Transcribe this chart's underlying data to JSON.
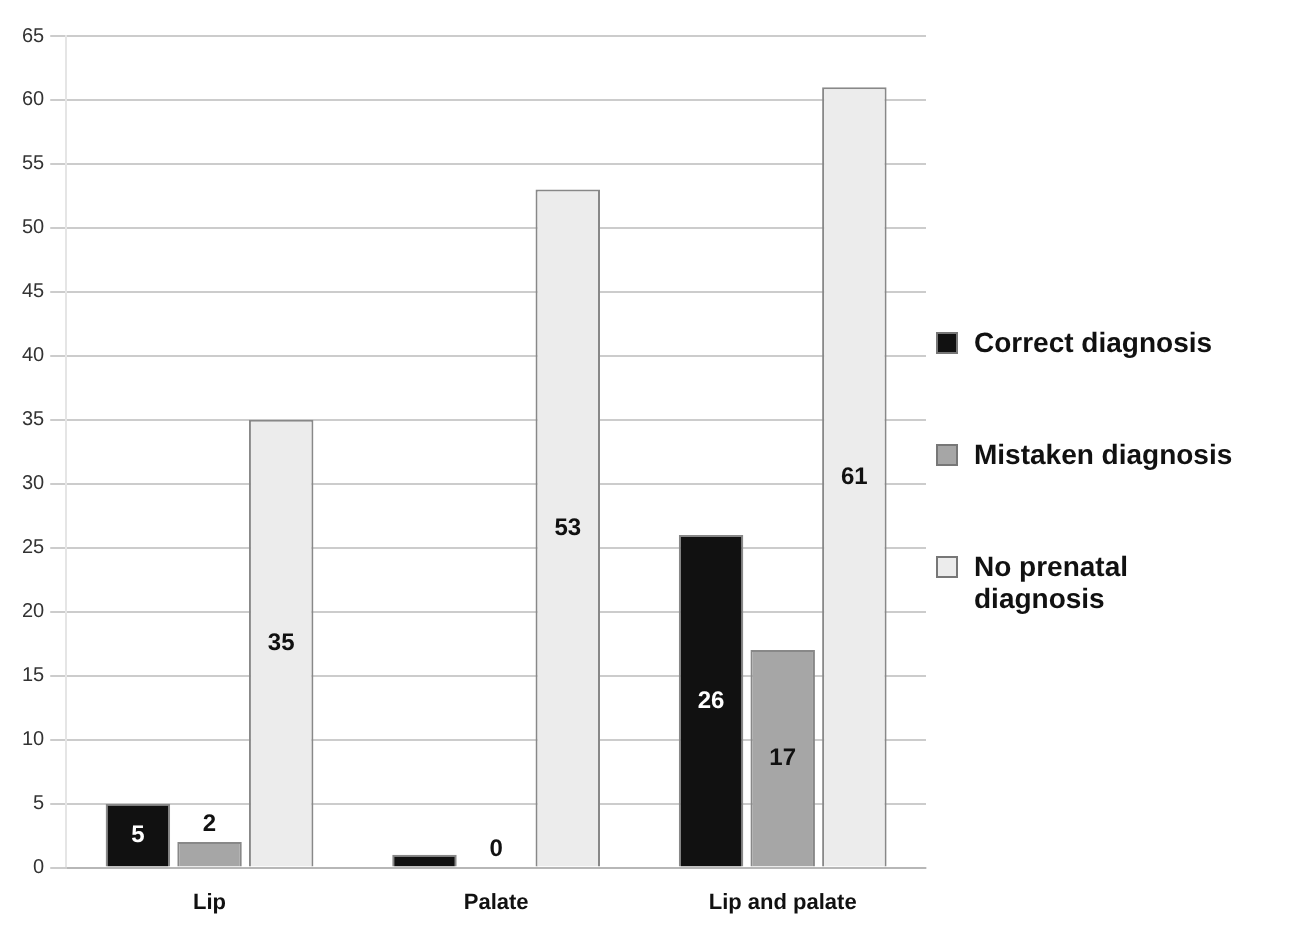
{
  "chart_data": {
    "type": "bar",
    "categories": [
      "Lip",
      "Palate",
      "Lip and palate"
    ],
    "series": [
      {
        "name": "Correct diagnosis",
        "color": "#111111",
        "values": [
          5,
          1,
          26
        ],
        "value_labels": [
          "5",
          null,
          "26"
        ]
      },
      {
        "name": "Mistaken diagnosis",
        "color": "#a6a6a6",
        "values": [
          2,
          0,
          17
        ],
        "value_labels": [
          "2",
          "0",
          "17"
        ]
      },
      {
        "name": "No prenatal diagnosis",
        "color": "#ececec",
        "values": [
          35,
          53,
          61
        ],
        "value_labels": [
          "35",
          "53",
          "61"
        ]
      }
    ],
    "ylim": [
      0,
      65
    ],
    "yticks": [
      0,
      5,
      10,
      15,
      20,
      25,
      30,
      35,
      40,
      45,
      50,
      55,
      60,
      65
    ],
    "grid": "y",
    "legend": "right"
  }
}
